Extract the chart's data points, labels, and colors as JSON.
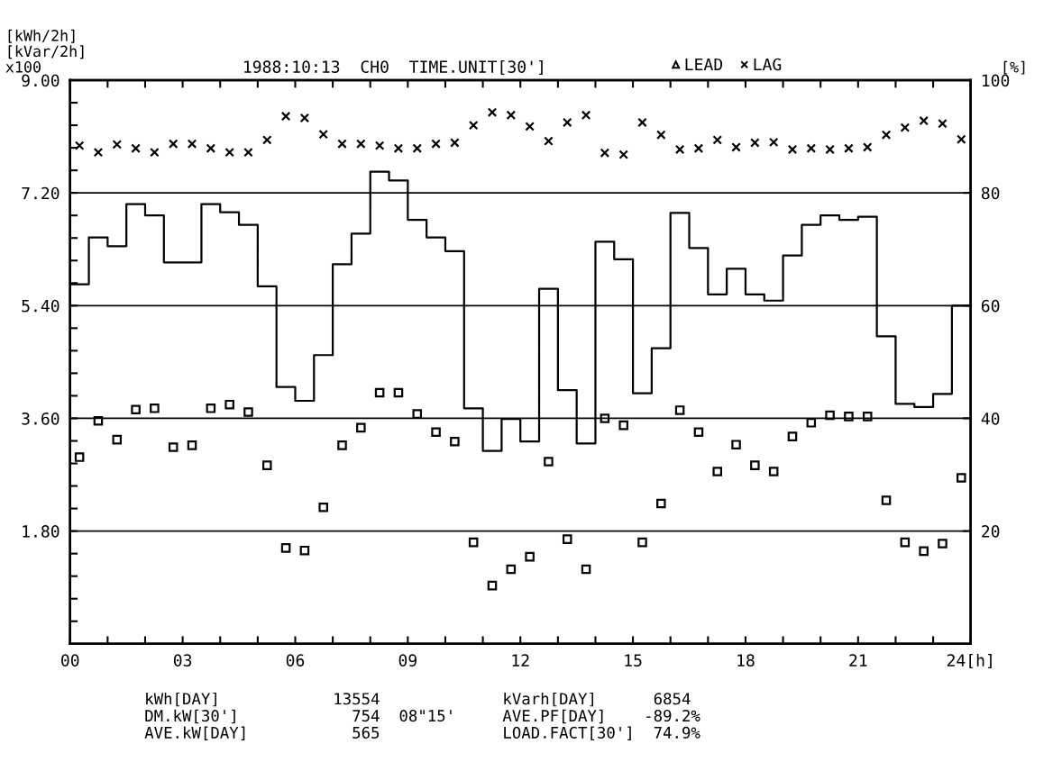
{
  "chart_data": {
    "type": "scatter",
    "title": "1988:10:13  CH0  TIME.UNIT[30']",
    "ylabel": "[kWh/2h]\n[kVar/2h]\nx100",
    "y2label": "[%]",
    "x": [
      0.25,
      0.75,
      1.25,
      1.75,
      2.25,
      2.75,
      3.25,
      3.75,
      4.25,
      4.75,
      5.25,
      5.75,
      6.25,
      6.75,
      7.25,
      7.75,
      8.25,
      8.75,
      9.25,
      9.75,
      10.25,
      10.75,
      11.25,
      11.75,
      12.25,
      12.75,
      13.25,
      13.75,
      14.25,
      14.75,
      15.25,
      15.75,
      16.25,
      16.75,
      17.25,
      17.75,
      18.25,
      18.75,
      19.25,
      19.75,
      20.25,
      20.75,
      21.25,
      21.75,
      22.25,
      22.75,
      23.25,
      23.75
    ],
    "series": [
      {
        "type": "step",
        "color": "#000000",
        "line_style": "solid",
        "x": [
          0,
          0.5,
          1,
          1.5,
          2,
          2.5,
          3,
          3.5,
          4,
          4.5,
          5,
          5.5,
          6,
          6.5,
          7,
          7.5,
          8,
          8.5,
          9,
          9.5,
          10,
          10.5,
          11,
          11.5,
          12,
          12.5,
          13,
          13.5,
          14,
          14.5,
          15,
          15.5,
          16,
          16.5,
          17,
          17.5,
          18,
          18.5,
          19,
          19.5,
          20,
          20.5,
          21,
          21.5,
          22,
          22.5,
          23,
          23.5,
          24
        ],
        "values": [
          5.74,
          6.49,
          6.35,
          7.02,
          6.84,
          6.09,
          6.09,
          7.02,
          6.89,
          6.69,
          5.71,
          4.1,
          3.88,
          4.61,
          6.06,
          6.55,
          7.54,
          7.4,
          6.77,
          6.49,
          6.27,
          3.76,
          3.08,
          3.59,
          3.23,
          5.67,
          4.05,
          3.2,
          6.42,
          6.14,
          4.0,
          4.72,
          6.88,
          6.32,
          5.58,
          5.99,
          5.58,
          5.48,
          6.2,
          6.69,
          6.84,
          6.77,
          6.82,
          4.91,
          3.83,
          3.78,
          3.99,
          5.4,
          5.4
        ]
      },
      {
        "color": "#000000",
        "marker": "square",
        "values": [
          2.98,
          3.56,
          3.26,
          3.74,
          3.76,
          3.14,
          3.17,
          3.76,
          3.82,
          3.7,
          2.85,
          1.53,
          1.49,
          2.18,
          3.17,
          3.45,
          4.01,
          4.01,
          3.67,
          3.38,
          3.23,
          1.62,
          0.93,
          1.19,
          1.39,
          2.91,
          1.67,
          1.19,
          3.6,
          3.49,
          1.62,
          2.24,
          3.73,
          3.38,
          2.75,
          3.18,
          2.85,
          2.75,
          3.31,
          3.53,
          3.65,
          3.63,
          3.63,
          2.29,
          1.62,
          1.48,
          1.6,
          2.65
        ]
      },
      {
        "name": "LEAD",
        "color": "#000000",
        "marker": "triangle",
        "axis": "y2",
        "values": [
          null,
          null,
          null,
          null,
          null,
          null,
          null,
          null,
          null,
          null,
          null,
          null,
          null,
          null,
          null,
          null,
          null,
          null,
          null,
          null,
          null,
          null,
          null,
          null,
          null,
          null,
          null,
          null,
          null,
          null,
          null,
          null,
          null,
          null,
          null,
          null,
          null,
          null,
          null,
          null,
          null,
          null,
          null,
          null,
          null,
          null,
          null,
          null
        ]
      },
      {
        "name": "LAG",
        "color": "#000000",
        "marker": "cross",
        "axis": "y2",
        "values": [
          88.4,
          87.2,
          88.6,
          87.9,
          87.2,
          88.7,
          88.7,
          87.9,
          87.2,
          87.2,
          89.4,
          93.6,
          93.3,
          90.4,
          88.7,
          88.7,
          88.4,
          87.9,
          87.9,
          88.7,
          88.9,
          92.0,
          94.3,
          93.8,
          91.8,
          89.2,
          92.5,
          93.8,
          87.1,
          86.8,
          92.5,
          90.3,
          87.7,
          87.9,
          89.4,
          88.1,
          88.9,
          89.0,
          87.7,
          87.9,
          87.7,
          87.9,
          88.1,
          90.3,
          91.6,
          92.8,
          92.3,
          89.5
        ]
      }
    ],
    "xlim": [
      0,
      24
    ],
    "xticks": [
      {
        "value": 0,
        "label": "00"
      },
      {
        "value": 1,
        "label": null
      },
      {
        "value": 2,
        "label": null
      },
      {
        "value": 3,
        "label": "03"
      },
      {
        "value": 4,
        "label": null
      },
      {
        "value": 5,
        "label": null
      },
      {
        "value": 6,
        "label": "06"
      },
      {
        "value": 7,
        "label": null
      },
      {
        "value": 8,
        "label": null
      },
      {
        "value": 9,
        "label": "09"
      },
      {
        "value": 10,
        "label": null
      },
      {
        "value": 11,
        "label": null
      },
      {
        "value": 12,
        "label": "12"
      },
      {
        "value": 13,
        "label": null
      },
      {
        "value": 14,
        "label": null
      },
      {
        "value": 15,
        "label": "15"
      },
      {
        "value": 16,
        "label": null
      },
      {
        "value": 17,
        "label": null
      },
      {
        "value": 18,
        "label": "18"
      },
      {
        "value": 19,
        "label": null
      },
      {
        "value": 20,
        "label": null
      },
      {
        "value": 21,
        "label": "21"
      },
      {
        "value": 22,
        "label": null
      },
      {
        "value": 23,
        "label": null
      },
      {
        "value": 24,
        "label": "24[h]"
      }
    ],
    "ylim": [
      0,
      9
    ],
    "yticks": [
      {
        "value": 0.36,
        "label": null
      },
      {
        "value": 0.72,
        "label": null
      },
      {
        "value": 1.08,
        "label": null
      },
      {
        "value": 1.44,
        "label": null
      },
      {
        "value": 1.8,
        "label": "1.80"
      },
      {
        "value": 2.16,
        "label": null
      },
      {
        "value": 2.52,
        "label": null
      },
      {
        "value": 2.88,
        "label": null
      },
      {
        "value": 3.24,
        "label": null
      },
      {
        "value": 3.6,
        "label": "3.60"
      },
      {
        "value": 3.96,
        "label": null
      },
      {
        "value": 4.32,
        "label": null
      },
      {
        "value": 4.68,
        "label": null
      },
      {
        "value": 5.04,
        "label": null
      },
      {
        "value": 5.4,
        "label": "5.40"
      },
      {
        "value": 5.76,
        "label": null
      },
      {
        "value": 6.12,
        "label": null
      },
      {
        "value": 6.48,
        "label": null
      },
      {
        "value": 6.84,
        "label": null
      },
      {
        "value": 7.2,
        "label": "7.20"
      },
      {
        "value": 7.56,
        "label": null
      },
      {
        "value": 7.92,
        "label": null
      },
      {
        "value": 8.28,
        "label": null
      },
      {
        "value": 8.64,
        "label": null
      },
      {
        "value": 9,
        "label": "9.00"
      }
    ],
    "y2lim": [
      0,
      100
    ],
    "y2ticks": [
      20,
      40,
      60,
      80,
      100
    ],
    "grid": "y",
    "legend": "top right",
    "annotations": [
      "kWh[DAY]            13554             kVarh[DAY]      6854",
      "DM.kW[30']            754  08\"15'     AVE.PF[DAY]    -89.2%",
      "AVE.kW[DAY]           565             LOAD.FACT[30']  74.9%"
    ]
  }
}
